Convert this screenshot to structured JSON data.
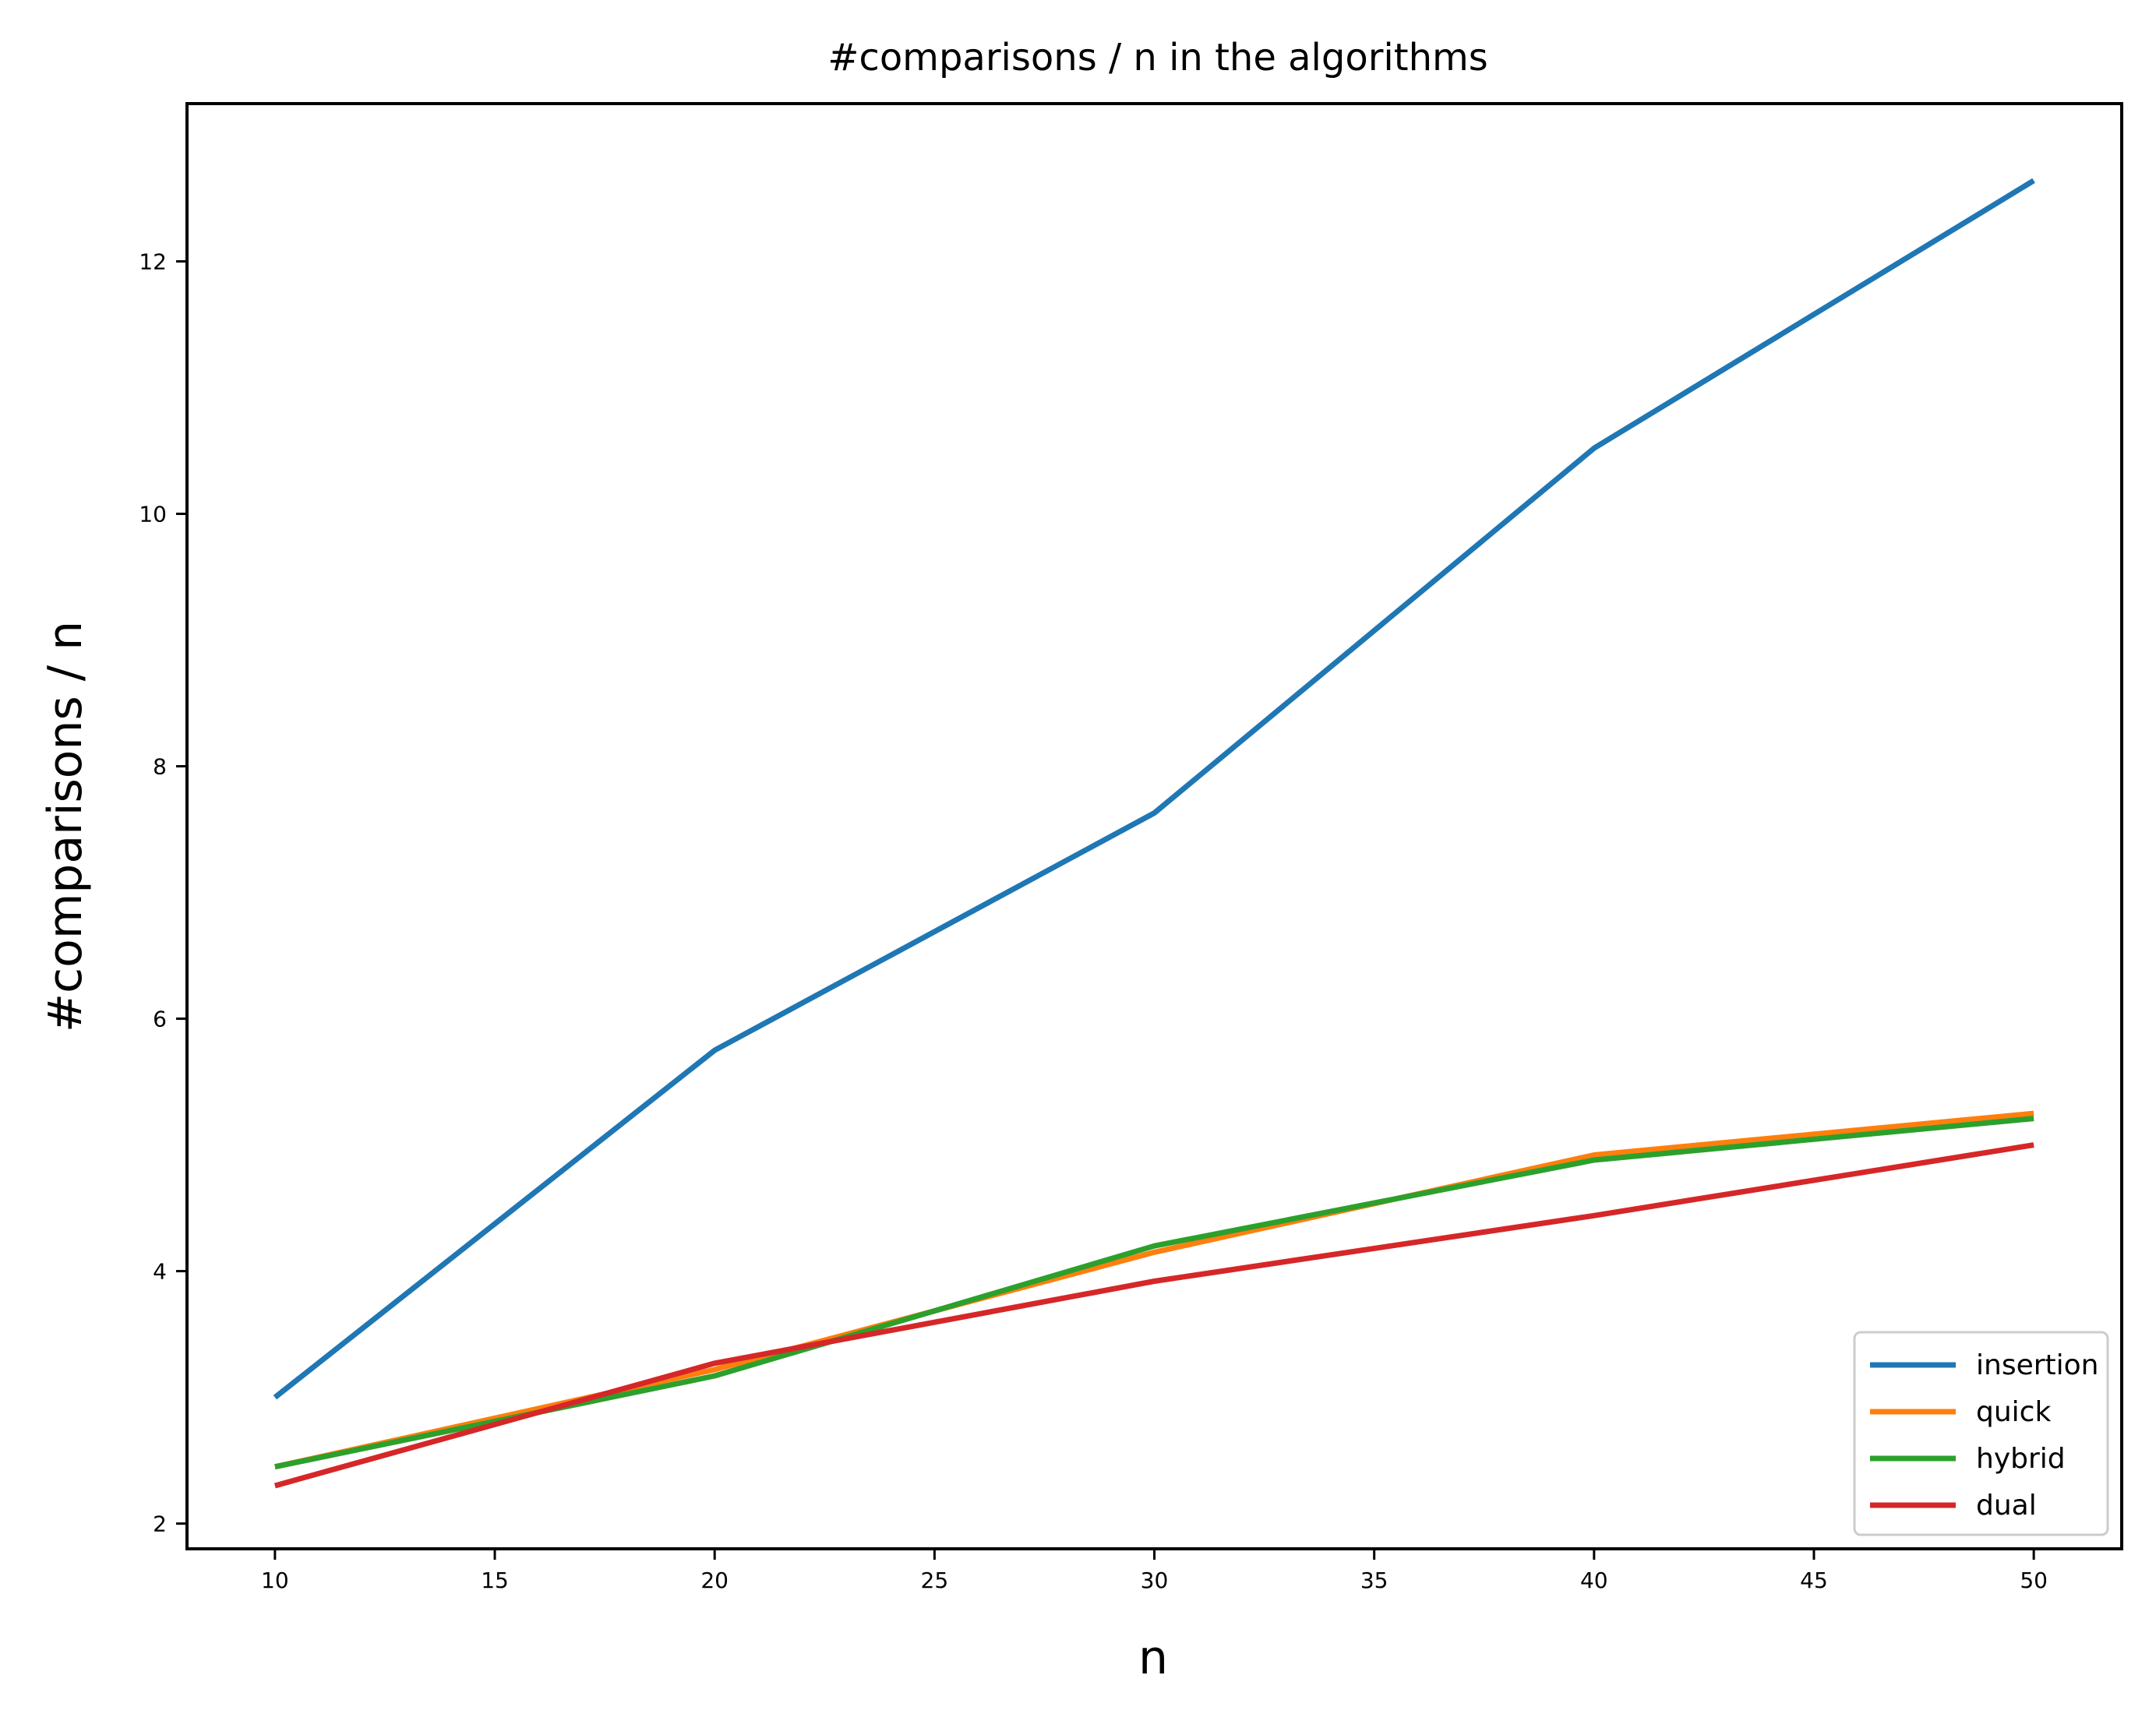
{
  "chart_data": {
    "type": "line",
    "title": "#comparisons / n in the algorithms",
    "xlabel": "n",
    "ylabel": "#comparisons / n",
    "x": [
      10,
      20,
      30,
      40,
      50
    ],
    "xlim": [
      8,
      52
    ],
    "ylim": [
      1.8,
      13.25
    ],
    "xticks": [
      10,
      15,
      20,
      25,
      30,
      35,
      40,
      45,
      50
    ],
    "yticks": [
      2,
      4,
      6,
      8,
      10,
      12
    ],
    "grid": false,
    "legend_position": "lower-right",
    "series": [
      {
        "name": "insertion",
        "color": "#1f77b4",
        "values": [
          3.0,
          5.75,
          7.63,
          10.52,
          12.64
        ]
      },
      {
        "name": "quick",
        "color": "#ff7f0e",
        "values": [
          2.45,
          3.22,
          4.15,
          4.92,
          5.25
        ]
      },
      {
        "name": "hybrid",
        "color": "#2ca02c",
        "values": [
          2.45,
          3.17,
          4.2,
          4.88,
          5.21
        ]
      },
      {
        "name": "dual",
        "color": "#d62728",
        "values": [
          2.3,
          3.27,
          3.92,
          4.44,
          5.0
        ]
      }
    ]
  }
}
